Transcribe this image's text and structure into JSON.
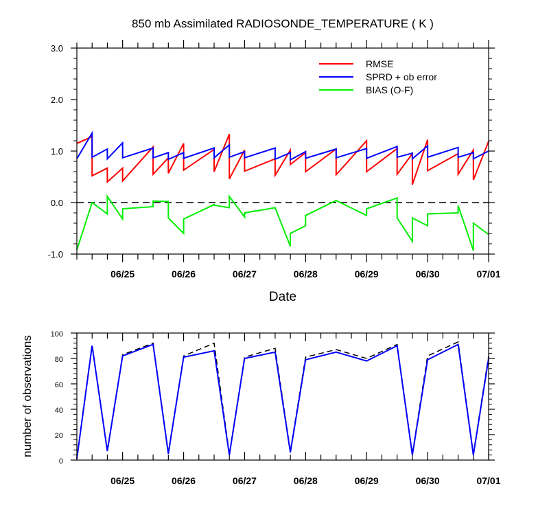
{
  "chart_data": [
    {
      "type": "line",
      "title": "850 mb Assimilated RADIOSONDE_TEMPERATURE ( K )",
      "xlabel": "Date",
      "ylabel": "",
      "ylim": [
        -1.0,
        3.0
      ],
      "yticks": [
        "3.0",
        "2.0",
        "1.0",
        "0.0",
        "-1.0"
      ],
      "xticks": [
        "06/25",
        "06/26",
        "06/27",
        "06/28",
        "06/29",
        "06/30",
        "07/01"
      ],
      "xlim": [
        "06/24 06:00",
        "07/01 00:00"
      ],
      "zero_line": true,
      "legend_position": "top-right",
      "series": [
        {
          "name": "RMSE",
          "color": "#ff0000",
          "x": [
            "06/24 06:00",
            "06/24 12:00",
            "06/24 12:00",
            "06/24 18:00",
            "06/24 18:00",
            "06/25 00:00",
            "06/25 00:00",
            "06/25 12:00",
            "06/25 12:00",
            "06/25 18:00",
            "06/25 18:00",
            "06/26 00:00",
            "06/26 00:00",
            "06/26 12:00",
            "06/26 12:00",
            "06/26 18:00",
            "06/26 18:00",
            "06/27 00:00",
            "06/27 00:00",
            "06/27 12:00",
            "06/27 12:00",
            "06/27 18:00",
            "06/27 18:00",
            "06/28 00:00",
            "06/28 00:00",
            "06/28 12:00",
            "06/28 12:00",
            "06/29 00:00",
            "06/29 00:00",
            "06/29 12:00",
            "06/29 12:00",
            "06/29 18:00",
            "06/29 18:00",
            "06/30 00:00",
            "06/30 00:00",
            "06/30 12:00",
            "06/30 12:00",
            "06/30 18:00",
            "06/30 18:00",
            "07/01 00:00"
          ],
          "values": [
            1.15,
            1.28,
            0.52,
            0.67,
            0.4,
            0.67,
            0.42,
            1.08,
            0.55,
            0.87,
            0.57,
            1.15,
            0.63,
            1.03,
            0.6,
            1.33,
            0.46,
            1.02,
            0.61,
            0.85,
            0.53,
            1.02,
            0.74,
            0.97,
            0.6,
            1.04,
            0.54,
            1.2,
            0.6,
            1.05,
            0.55,
            0.95,
            0.35,
            1.22,
            0.62,
            0.95,
            0.55,
            1.02,
            0.44,
            1.19
          ]
        },
        {
          "name": "SPRD + ob error",
          "color": "#0000ff",
          "x": [
            "06/24 06:00",
            "06/24 12:00",
            "06/24 12:00",
            "06/24 18:00",
            "06/24 18:00",
            "06/25 00:00",
            "06/25 00:00",
            "06/25 12:00",
            "06/25 12:00",
            "06/25 18:00",
            "06/25 18:00",
            "06/26 00:00",
            "06/26 00:00",
            "06/26 12:00",
            "06/26 12:00",
            "06/26 18:00",
            "06/26 18:00",
            "06/27 00:00",
            "06/27 00:00",
            "06/27 12:00",
            "06/27 12:00",
            "06/27 18:00",
            "06/27 18:00",
            "06/28 00:00",
            "06/28 00:00",
            "06/28 12:00",
            "06/28 12:00",
            "06/29 00:00",
            "06/29 00:00",
            "06/29 12:00",
            "06/29 12:00",
            "06/29 18:00",
            "06/29 18:00",
            "06/30 00:00",
            "06/30 00:00",
            "06/30 12:00",
            "06/30 12:00",
            "06/30 18:00",
            "06/30 18:00",
            "07/01 00:00"
          ],
          "values": [
            0.85,
            1.35,
            0.88,
            1.04,
            0.85,
            1.16,
            0.87,
            1.06,
            0.87,
            0.97,
            0.84,
            0.97,
            0.86,
            1.06,
            0.87,
            1.12,
            0.88,
            0.99,
            0.87,
            1.06,
            0.84,
            0.97,
            0.83,
            0.99,
            0.86,
            1.04,
            0.87,
            1.05,
            0.86,
            1.09,
            0.88,
            0.96,
            0.85,
            1.1,
            0.88,
            1.07,
            0.88,
            0.97,
            0.85,
            1.0
          ]
        },
        {
          "name": "BIAS (O-F)",
          "color": "#00ee00",
          "x": [
            "06/24 06:00",
            "06/24 12:00",
            "06/24 18:00",
            "06/24 18:00",
            "06/25 00:00",
            "06/25 00:00",
            "06/25 12:00",
            "06/25 12:00",
            "06/25 18:00",
            "06/25 18:00",
            "06/26 00:00",
            "06/26 00:00",
            "06/26 12:00",
            "06/26 12:00",
            "06/26 18:00",
            "06/26 18:00",
            "06/27 00:00",
            "06/27 00:00",
            "06/27 12:00",
            "06/27 12:00",
            "06/27 18:00",
            "06/27 18:00",
            "06/28 00:00",
            "06/28 00:00",
            "06/28 12:00",
            "06/29 00:00",
            "06/29 00:00",
            "06/29 12:00",
            "06/29 12:00",
            "06/29 18:00",
            "06/29 18:00",
            "06/30 00:00",
            "06/30 00:00",
            "06/30 12:00",
            "06/30 12:00",
            "06/30 18:00",
            "06/30 18:00",
            "07/01 00:00"
          ],
          "values": [
            -0.92,
            0.0,
            -0.22,
            0.12,
            -0.32,
            -0.12,
            -0.08,
            0.03,
            0.02,
            -0.3,
            -0.6,
            -0.32,
            -0.04,
            -0.05,
            -0.1,
            0.12,
            -0.28,
            -0.2,
            -0.1,
            -0.1,
            -0.85,
            -0.6,
            -0.45,
            -0.25,
            0.04,
            -0.25,
            -0.12,
            0.09,
            -0.3,
            -0.75,
            -0.3,
            -0.45,
            -0.22,
            -0.2,
            -0.06,
            -0.93,
            -0.4,
            -0.62
          ]
        }
      ]
    },
    {
      "type": "line",
      "title": "",
      "xlabel": "",
      "ylabel": "number of observations",
      "ylim": [
        0,
        100
      ],
      "yticks": [
        "100",
        "80",
        "60",
        "40",
        "20",
        "0"
      ],
      "xticks": [
        "06/25",
        "06/26",
        "06/27",
        "06/28",
        "06/29",
        "06/30",
        "07/01"
      ],
      "xlim": [
        "06/24 06:00",
        "07/01 00:00"
      ],
      "legend_position": "none",
      "series": [
        {
          "style": "dashed",
          "color": "#000000",
          "x": [
            "06/24 06:00",
            "06/24 12:00",
            "06/24 18:00",
            "06/25 00:00",
            "06/25 12:00",
            "06/25 18:00",
            "06/26 00:00",
            "06/26 12:00",
            "06/26 18:00",
            "06/27 00:00",
            "06/27 12:00",
            "06/27 18:00",
            "06/28 00:00",
            "06/28 12:00",
            "06/29 00:00",
            "06/29 12:00",
            "06/29 18:00",
            "06/30 00:00",
            "06/30 12:00",
            "06/30 18:00",
            "07/01 00:00"
          ],
          "values": [
            2,
            91,
            8,
            83,
            92,
            6,
            82,
            92,
            5,
            81,
            88,
            7,
            81,
            87,
            80,
            91,
            5,
            82,
            93,
            5,
            82
          ]
        },
        {
          "style": "solid",
          "color": "#0000ff",
          "x": [
            "06/24 06:00",
            "06/24 12:00",
            "06/24 18:00",
            "06/25 00:00",
            "06/25 12:00",
            "06/25 18:00",
            "06/26 00:00",
            "06/26 12:00",
            "06/26 18:00",
            "06/27 00:00",
            "06/27 12:00",
            "06/27 18:00",
            "06/28 00:00",
            "06/28 12:00",
            "06/29 00:00",
            "06/29 12:00",
            "06/29 18:00",
            "06/30 00:00",
            "06/30 12:00",
            "06/30 18:00",
            "07/01 00:00"
          ],
          "values": [
            1,
            90,
            7,
            82,
            91,
            5,
            81,
            86,
            4,
            80,
            85,
            6,
            79,
            85,
            78,
            90,
            4,
            79,
            91,
            4,
            80
          ]
        }
      ]
    }
  ]
}
